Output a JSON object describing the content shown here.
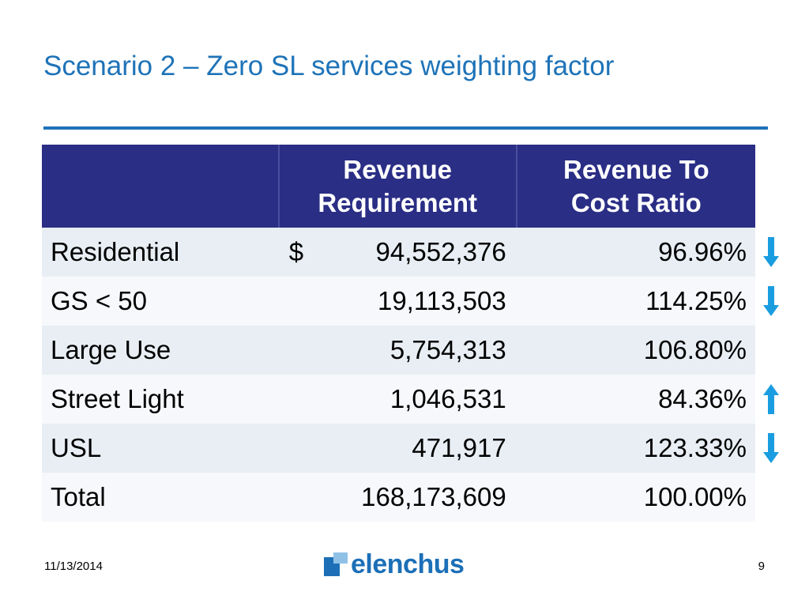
{
  "slide": {
    "title": "Scenario 2 – Zero SL services weighting factor",
    "date": "11/13/2014",
    "page_number": "9",
    "logo_text": "elenchus"
  },
  "colors": {
    "title": "#1e73b8",
    "header_bg": "#2a2e85",
    "arrow_up_red": "#e8141b",
    "arrow_down_green": "#2aa12e",
    "arrow_blue": "#1a9de0"
  },
  "table": {
    "headers": [
      "",
      "Revenue\nRequirement",
      "Revenue To\nCost Ratio"
    ],
    "rows": [
      {
        "label": "Residential",
        "currency": "$",
        "revenue": "94,552,376",
        "revenue_trend": "up-red",
        "ratio": "96.96%",
        "ratio_trend": "down-blue"
      },
      {
        "label": "GS < 50",
        "currency": "",
        "revenue": "19,113,503",
        "revenue_trend": "up-red",
        "ratio": "114.25%",
        "ratio_trend": "down-blue"
      },
      {
        "label": "Large Use",
        "currency": "",
        "revenue": "5,754,313",
        "revenue_trend": "",
        "ratio": "106.80%",
        "ratio_trend": ""
      },
      {
        "label": "Street Light",
        "currency": "",
        "revenue": "1,046,531",
        "revenue_trend": "down-green",
        "ratio": "84.36%",
        "ratio_trend": "up-blue"
      },
      {
        "label": "USL",
        "currency": "",
        "revenue": "471,917",
        "revenue_trend": "up-red",
        "ratio": "123.33%",
        "ratio_trend": "down-blue"
      },
      {
        "label": "Total",
        "currency": "",
        "revenue": "168,173,609",
        "revenue_trend": "",
        "ratio": "100.00%",
        "ratio_trend": ""
      }
    ]
  }
}
